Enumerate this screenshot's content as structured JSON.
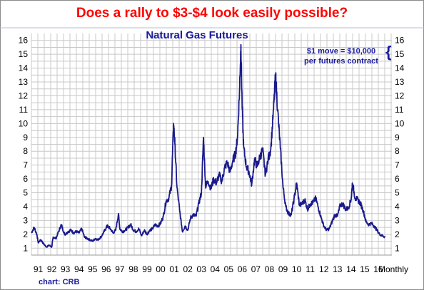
{
  "headline": "Does a rally to $3-$4 look easily possible?",
  "source": "chart: CRB",
  "chart_data": {
    "type": "line",
    "title": "Natural Gas Futures",
    "annotation": "$1 move = $10,000",
    "annotation_line2": "per futures contract",
    "annotation_brace": "{",
    "frequency_label": "Monthly",
    "x_tick_labels": [
      "91",
      "92",
      "93",
      "94",
      "95",
      "96",
      "97",
      "98",
      "99",
      "00",
      "01",
      "02",
      "03",
      "04",
      "05",
      "06",
      "07",
      "08",
      "09",
      "10",
      "11",
      "12",
      "13",
      "14",
      "15",
      "16"
    ],
    "y_ticks": [
      "1",
      "2",
      "3",
      "4",
      "5",
      "6",
      "7",
      "8",
      "9",
      "10",
      "11",
      "12",
      "13",
      "14",
      "15",
      "16"
    ],
    "ylim": [
      0.5,
      16.5
    ],
    "xlim": [
      1990.5,
      2017.0
    ],
    "grid": true,
    "line_color": "#1a1a8c",
    "grid_color": "#c8c8c8",
    "series": [
      {
        "x": [
          1990.5,
          1990.7,
          1990.9,
          1991.0,
          1991.2,
          1991.4,
          1991.6,
          1991.8,
          1992.0,
          1992.1,
          1992.3,
          1992.5,
          1992.7,
          1992.9,
          1993.0,
          1993.2,
          1993.4,
          1993.6,
          1993.8,
          1994.0,
          1994.2,
          1994.4,
          1994.6,
          1994.8,
          1995.0,
          1995.2,
          1995.4,
          1995.6,
          1995.8,
          1996.0,
          1996.1,
          1996.3,
          1996.5,
          1996.7,
          1996.9,
          1997.0,
          1997.2,
          1997.4,
          1997.6,
          1997.8,
          1998.0,
          1998.2,
          1998.4,
          1998.6,
          1998.8,
          1999.0,
          1999.2,
          1999.4,
          1999.6,
          1999.8,
          2000.0,
          2000.2,
          2000.4,
          2000.6,
          2000.8,
          2000.95,
          2001.05,
          2001.2,
          2001.4,
          2001.6,
          2001.8,
          2002.0,
          2002.2,
          2002.4,
          2002.6,
          2002.8,
          2003.0,
          2003.15,
          2003.3,
          2003.5,
          2003.7,
          2003.9,
          2004.1,
          2004.3,
          2004.5,
          2004.7,
          2004.9,
          2005.1,
          2005.3,
          2005.5,
          2005.65,
          2005.8,
          2005.9,
          2006.0,
          2006.1,
          2006.3,
          2006.5,
          2006.7,
          2006.9,
          2007.1,
          2007.3,
          2007.5,
          2007.7,
          2007.9,
          2008.1,
          2008.3,
          2008.45,
          2008.6,
          2008.8,
          2009.0,
          2009.2,
          2009.4,
          2009.6,
          2009.8,
          2010.0,
          2010.2,
          2010.4,
          2010.6,
          2010.8,
          2011.0,
          2011.2,
          2011.4,
          2011.6,
          2011.8,
          2012.0,
          2012.2,
          2012.4,
          2012.6,
          2012.8,
          2013.0,
          2013.2,
          2013.4,
          2013.6,
          2013.8,
          2014.0,
          2014.1,
          2014.3,
          2014.5,
          2014.7,
          2014.9,
          2015.1,
          2015.3,
          2015.5,
          2015.7,
          2015.9,
          2016.1,
          2016.3,
          2016.5
        ],
        "y": [
          2.1,
          2.5,
          2.0,
          1.4,
          1.6,
          1.3,
          1.1,
          1.2,
          1.1,
          1.8,
          1.7,
          2.2,
          2.7,
          2.1,
          2.0,
          2.2,
          2.3,
          2.1,
          2.2,
          2.1,
          2.4,
          1.8,
          1.7,
          1.6,
          1.5,
          1.7,
          1.6,
          1.8,
          2.1,
          2.5,
          2.6,
          2.4,
          2.1,
          2.3,
          3.5,
          2.4,
          2.2,
          2.3,
          2.5,
          2.7,
          2.3,
          2.2,
          2.4,
          1.9,
          2.3,
          2.0,
          2.3,
          2.4,
          2.7,
          2.6,
          2.8,
          3.3,
          4.4,
          4.6,
          5.5,
          10.0,
          8.5,
          5.4,
          3.7,
          2.2,
          2.6,
          2.3,
          3.2,
          3.4,
          3.3,
          4.2,
          5.0,
          9.0,
          5.5,
          5.8,
          5.3,
          6.0,
          5.7,
          6.3,
          5.8,
          6.8,
          7.2,
          6.5,
          7.3,
          7.8,
          9.0,
          12.4,
          15.7,
          11.0,
          8.3,
          6.9,
          6.5,
          5.6,
          7.4,
          6.9,
          7.6,
          8.1,
          6.3,
          7.4,
          8.2,
          11.0,
          13.5,
          11.0,
          8.2,
          5.4,
          4.0,
          3.5,
          3.4,
          4.5,
          5.7,
          4.1,
          4.2,
          4.5,
          3.8,
          4.2,
          4.3,
          4.6,
          3.9,
          3.2,
          2.6,
          2.3,
          2.4,
          2.9,
          3.4,
          3.3,
          4.1,
          4.2,
          3.8,
          3.9,
          4.5,
          5.7,
          4.6,
          4.5,
          4.2,
          3.7,
          2.9,
          2.7,
          2.8,
          2.6,
          2.3,
          2.0,
          1.9,
          1.8
        ]
      }
    ]
  }
}
